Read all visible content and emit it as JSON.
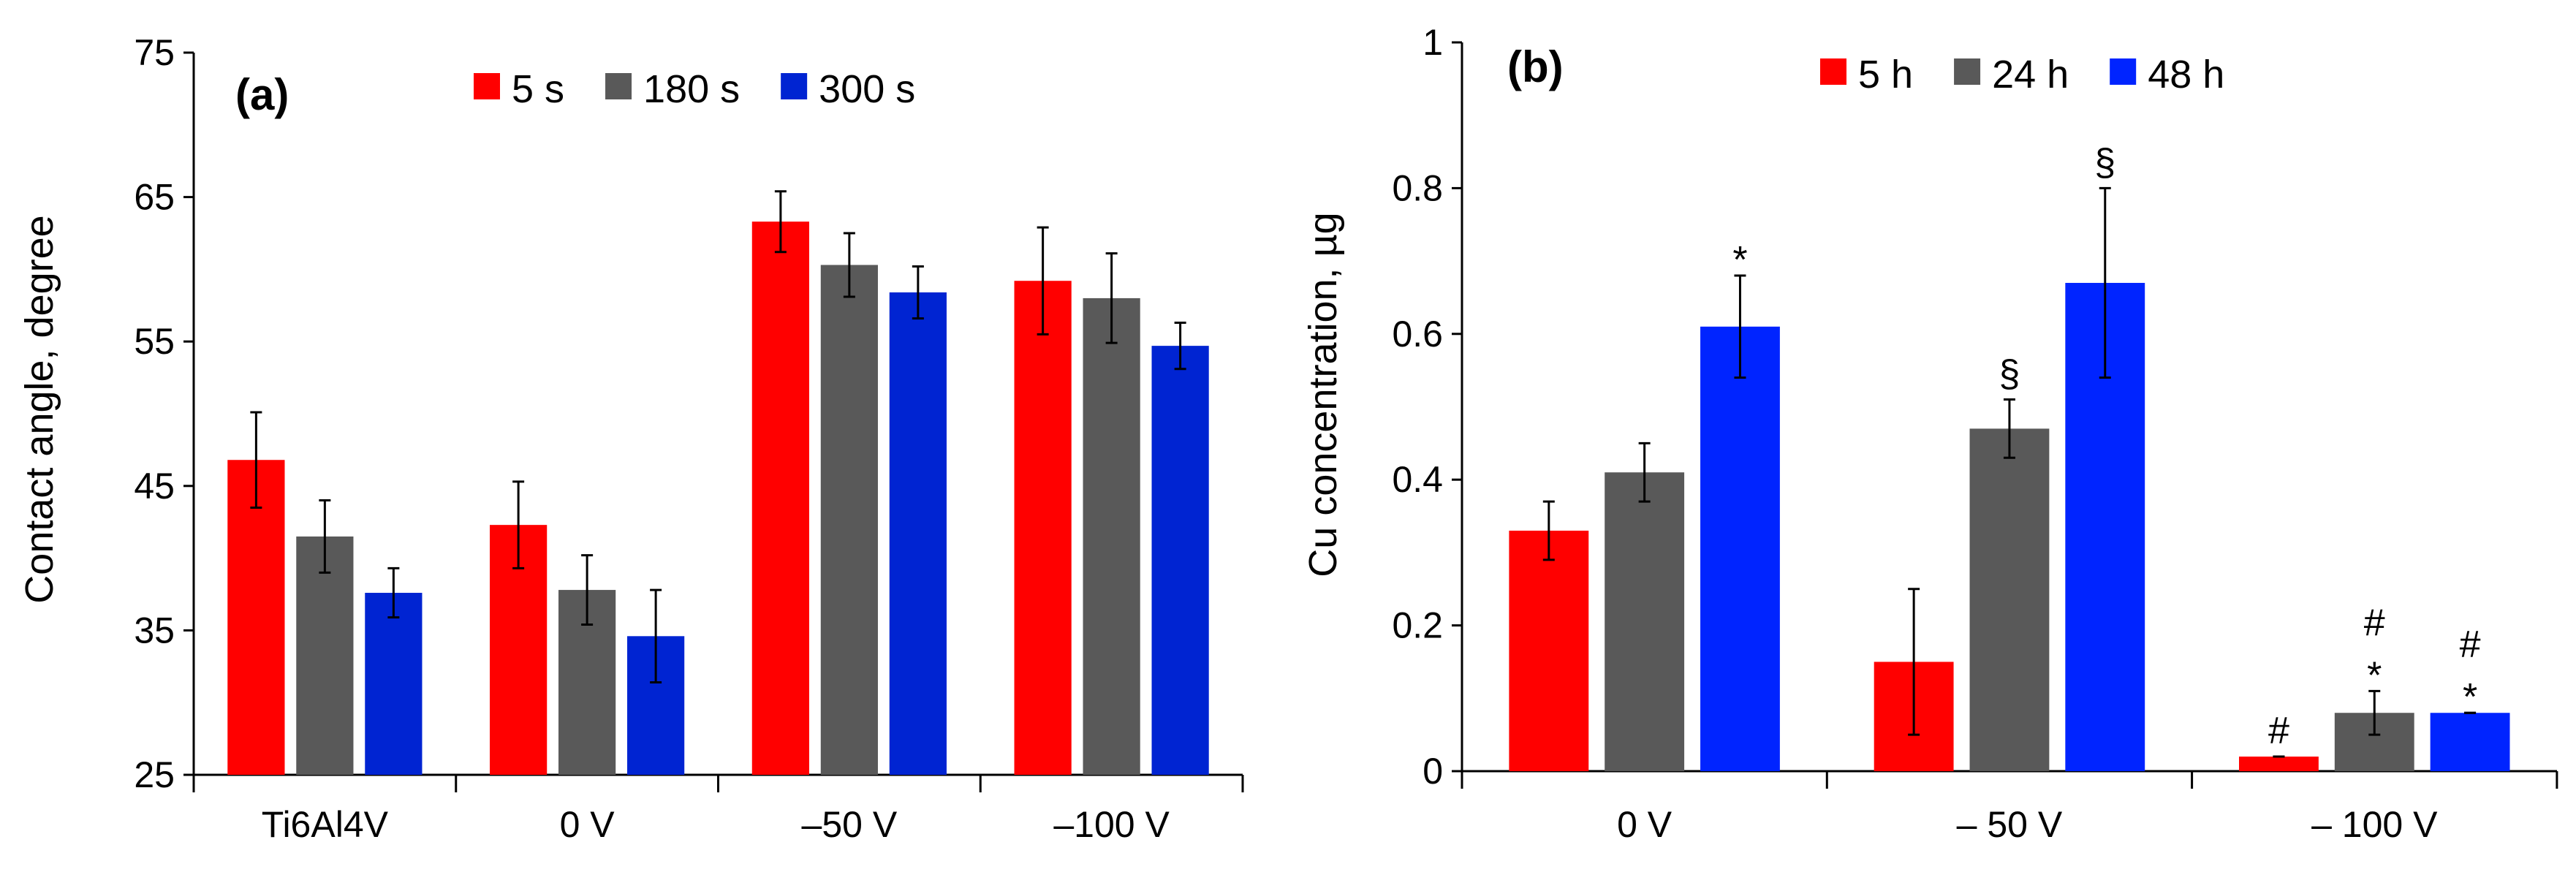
{
  "chart_data": [
    {
      "type": "bar",
      "panel_label": "(a)",
      "ylabel": "Contact angle, degree",
      "xlabel": "",
      "ylim": [
        25,
        75
      ],
      "yticks": [
        "25",
        "35",
        "45",
        "55",
        "65",
        "75"
      ],
      "categories": [
        "Ti6Al4V",
        "0 V",
        "–50 V",
        "–100 V"
      ],
      "legend_position": "top",
      "series": [
        {
          "name": "5 s",
          "color": "#ff0000",
          "values": [
            46.8,
            42.3,
            63.3,
            59.2
          ],
          "errors": [
            3.3,
            3.0,
            2.1,
            3.7
          ]
        },
        {
          "name": "180 s",
          "color": "#595959",
          "values": [
            41.5,
            37.8,
            60.3,
            58.0
          ],
          "errors": [
            2.5,
            2.4,
            2.2,
            3.1
          ]
        },
        {
          "name": "300 s",
          "color": "#0024d2",
          "values": [
            37.6,
            34.6,
            58.4,
            54.7
          ],
          "errors": [
            1.7,
            3.2,
            1.8,
            1.6
          ]
        }
      ],
      "annotations": []
    },
    {
      "type": "bar",
      "panel_label": "(b)",
      "ylabel": "Cu concentration, µg",
      "xlabel": "",
      "ylim": [
        0,
        1
      ],
      "yticks": [
        "0",
        "0.2",
        "0.4",
        "0.6",
        "0.8",
        "1"
      ],
      "categories": [
        "0 V",
        "– 50 V",
        "– 100 V"
      ],
      "legend_position": "top",
      "series": [
        {
          "name": "5 h",
          "color": "#ff0000",
          "values": [
            0.33,
            0.15,
            0.02
          ],
          "errors": [
            0.04,
            0.1,
            0.0
          ]
        },
        {
          "name": "24 h",
          "color": "#595959",
          "values": [
            0.41,
            0.47,
            0.08
          ],
          "errors": [
            0.04,
            0.04,
            0.03
          ]
        },
        {
          "name": "48 h",
          "color": "#0024ff",
          "values": [
            0.61,
            0.67,
            0.08
          ],
          "errors": [
            0.07,
            0.13,
            0.0
          ]
        }
      ],
      "annotations": [
        {
          "series": 2,
          "category": 0,
          "text": "*"
        },
        {
          "series": 1,
          "category": 1,
          "text": "§"
        },
        {
          "series": 2,
          "category": 1,
          "text": "§"
        },
        {
          "series": 0,
          "category": 2,
          "text": "#"
        },
        {
          "series": 1,
          "category": 2,
          "text": "#"
        },
        {
          "series": 1,
          "category": 2,
          "text": "*"
        },
        {
          "series": 2,
          "category": 2,
          "text": "#"
        },
        {
          "series": 2,
          "category": 2,
          "text": "*"
        }
      ]
    }
  ]
}
